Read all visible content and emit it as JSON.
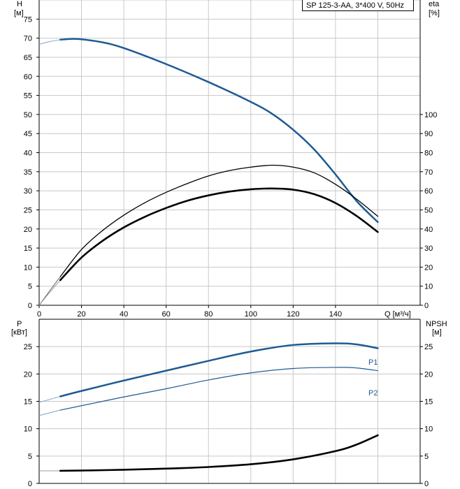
{
  "colors": {
    "blue": "#1f5a94",
    "light_blue": "#7fa3c8",
    "black": "#000000",
    "grid": "#c8c8c8"
  },
  "chart_data": [
    {
      "type": "line",
      "title": "SP 125-3-AA, 3*400 V, 50Hz",
      "xlabel": "Q [м³/ч]",
      "ylabel_line1": "H",
      "ylabel_line2": "[м]",
      "y2label_line1": "eta",
      "y2label_line2": "[%]",
      "xlim": [
        0,
        180
      ],
      "ylim": [
        0,
        80
      ],
      "y2lim": [
        0,
        160
      ],
      "x_ticks": [
        "0",
        "20",
        "40",
        "60",
        "80",
        "100",
        "120",
        "140"
      ],
      "y_ticks": [
        "0",
        "5",
        "10",
        "15",
        "20",
        "25",
        "30",
        "35",
        "40",
        "45",
        "50",
        "55",
        "60",
        "65",
        "70",
        "75"
      ],
      "y2_ticks": [
        "0",
        "10",
        "20",
        "30",
        "40",
        "50",
        "60",
        "70",
        "80",
        "90",
        "100"
      ],
      "grid": true,
      "series": [
        {
          "name": "H",
          "axis": "left",
          "color": "#1f5a94",
          "width": 2.5,
          "x": [
            10,
            15,
            20,
            30,
            40,
            60,
            80,
            100,
            110,
            120,
            130,
            140,
            150,
            160
          ],
          "y": [
            69.6,
            69.8,
            69.7,
            68.9,
            67.4,
            63.2,
            58.5,
            53.3,
            50.2,
            46.0,
            40.8,
            34.3,
            27.3,
            21.8
          ]
        },
        {
          "name": "eta",
          "axis": "left",
          "color": "#000000",
          "width": 1.3,
          "x": [
            10,
            20,
            30,
            40,
            50,
            60,
            70,
            80,
            90,
            100,
            110,
            120,
            130,
            140,
            150,
            160
          ],
          "y": [
            7.5,
            14.6,
            19.6,
            23.6,
            26.9,
            29.6,
            31.9,
            33.9,
            35.3,
            36.2,
            36.7,
            36.2,
            34.7,
            31.7,
            27.8,
            23.3
          ]
        },
        {
          "name": "eta_total",
          "axis": "left",
          "color": "#000000",
          "width": 2.6,
          "x": [
            10,
            20,
            30,
            40,
            50,
            60,
            70,
            80,
            90,
            100,
            110,
            120,
            130,
            140,
            150,
            160
          ],
          "y": [
            6.6,
            12.5,
            16.9,
            20.4,
            23.2,
            25.5,
            27.4,
            28.8,
            29.8,
            30.4,
            30.6,
            30.3,
            29.1,
            26.8,
            23.4,
            19.2
          ]
        }
      ],
      "extension_lines": [
        {
          "name": "H_ext",
          "color": "#7fa3c8",
          "x": [
            0,
            5,
            10
          ],
          "y": [
            68.4,
            69.1,
            69.6
          ]
        },
        {
          "name": "eta_ext",
          "color": "#666666",
          "x": [
            0,
            5,
            10
          ],
          "y": [
            0,
            3.8,
            7.5
          ]
        },
        {
          "name": "eta_total_ext",
          "color": "#999999",
          "x": [
            0,
            5,
            10
          ],
          "y": [
            0,
            3.4,
            6.6
          ]
        }
      ]
    },
    {
      "type": "line",
      "ylabel_line1": "P",
      "ylabel_line2": "[кВт]",
      "y2label_line1": "NPSH",
      "y2label_line2": "[м]",
      "xlim": [
        0,
        180
      ],
      "ylim": [
        0,
        30
      ],
      "y_ticks": [
        "0",
        "5",
        "10",
        "15",
        "20",
        "25"
      ],
      "y2_ticks": [
        "0",
        "5",
        "10",
        "15",
        "20",
        "25"
      ],
      "grid": true,
      "series": [
        {
          "name": "P1",
          "color": "#1f5a94",
          "width": 2.5,
          "x": [
            10,
            20,
            40,
            60,
            80,
            100,
            120,
            140,
            150,
            160
          ],
          "y": [
            15.9,
            16.9,
            18.8,
            20.6,
            22.4,
            24.1,
            25.3,
            25.6,
            25.4,
            24.7
          ]
        },
        {
          "name": "P2",
          "color": "#1f5a94",
          "width": 1.2,
          "x": [
            10,
            20,
            40,
            60,
            80,
            100,
            120,
            140,
            150,
            160
          ],
          "y": [
            13.4,
            14.2,
            15.8,
            17.3,
            18.9,
            20.2,
            21.0,
            21.2,
            21.1,
            20.6
          ]
        },
        {
          "name": "NPSH",
          "color": "#000000",
          "width": 2.6,
          "x": [
            10,
            20,
            40,
            60,
            80,
            100,
            120,
            140,
            150,
            160
          ],
          "y": [
            2.3,
            2.35,
            2.5,
            2.7,
            3.0,
            3.5,
            4.4,
            5.9,
            7.1,
            8.8
          ]
        }
      ],
      "extension_lines": [
        {
          "name": "P1_ext",
          "color": "#7fa3c8",
          "x": [
            0,
            10
          ],
          "y": [
            14.8,
            15.9
          ]
        },
        {
          "name": "P2_ext",
          "color": "#7fa3c8",
          "x": [
            0,
            10
          ],
          "y": [
            12.4,
            13.4
          ]
        },
        {
          "name": "NPSH_ext",
          "color": "#999999",
          "x": [
            0,
            10
          ],
          "y": [
            2.3,
            2.3
          ]
        }
      ]
    }
  ]
}
